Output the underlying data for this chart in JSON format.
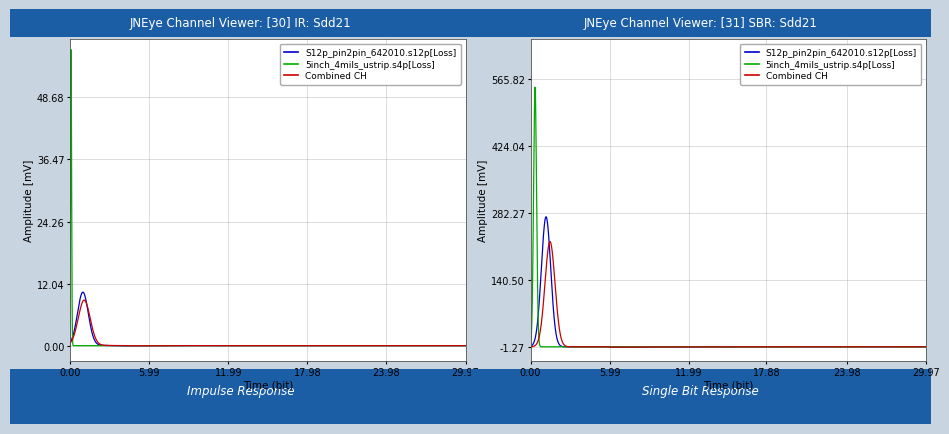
{
  "left_title": "JNEye Channel Viewer: [30] IR: Sdd21",
  "right_title": "JNEye Channel Viewer: [31] SBR: Sdd21",
  "left_bottom_label": "Impulse Response",
  "right_bottom_label": "Single Bit Response",
  "xlabel": "Time (bit)",
  "ylabel": "Amplitude [mV]",
  "header_bg": "#1b5ea6",
  "header_text_color": "#ffffff",
  "plot_bg": "#ffffff",
  "footer_bg": "#1b5ea6",
  "footer_text_color": "#ffffff",
  "outer_bg": "#c8d4e0",
  "grid_color": "#999999",
  "legend_labels": [
    "S12p_pin2pin_642010.s12p[Loss]",
    "5inch_4mils_ustrip.s4p[Loss]",
    "Combined CH"
  ],
  "line_colors": [
    "#0000cc",
    "#00aa00",
    "#cc0000"
  ],
  "left_yticks": [
    0.0,
    12.04,
    24.26,
    36.47,
    48.68
  ],
  "left_ylim": [
    -3,
    60
  ],
  "left_xticks": [
    0.0,
    5.99,
    11.99,
    17.98,
    23.98,
    29.97
  ],
  "left_xlim": [
    0.0,
    29.97
  ],
  "right_yticks": [
    -1.27,
    140.5,
    282.27,
    424.04,
    565.82
  ],
  "right_ylim": [
    -30,
    650
  ],
  "right_xticks": [
    0.0,
    5.99,
    11.99,
    17.88,
    23.98,
    29.97
  ],
  "right_xlim": [
    0.0,
    29.97
  ],
  "tick_fontsize": 7,
  "label_fontsize": 7.5,
  "title_fontsize": 8.5,
  "legend_fontsize": 6.5,
  "footer_fontsize": 8.5
}
